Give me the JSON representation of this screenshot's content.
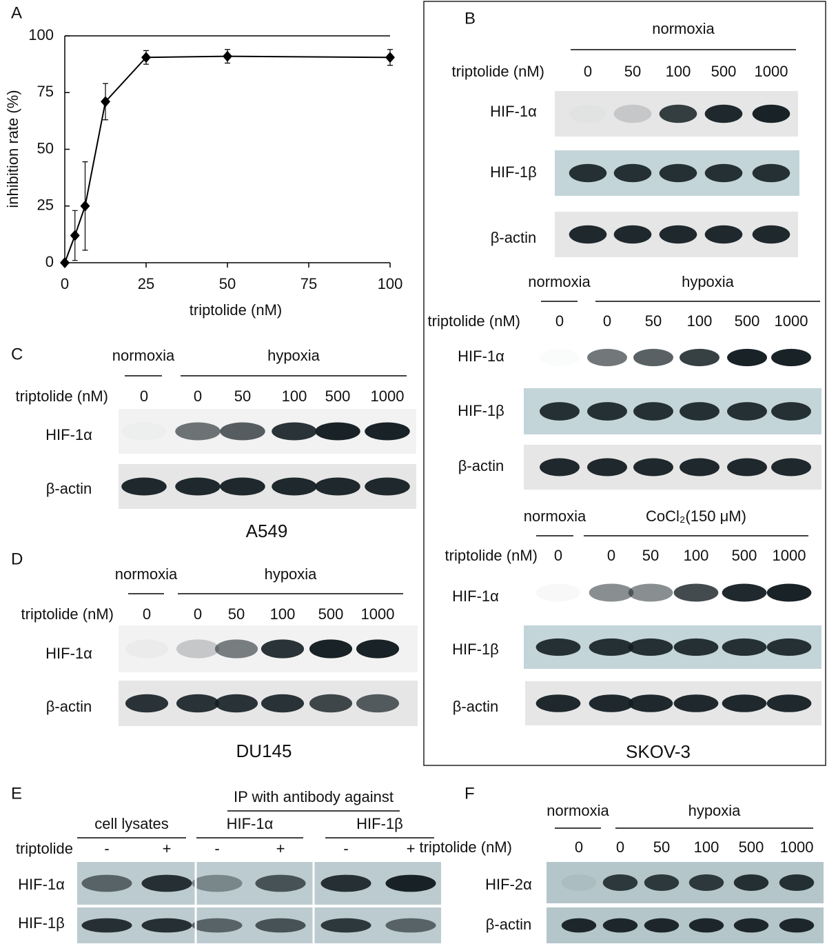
{
  "panel_labels": [
    "A",
    "B",
    "C",
    "D",
    "E",
    "F"
  ],
  "chart_data": {
    "type": "line",
    "x": [
      0,
      3.125,
      6.25,
      12.5,
      25,
      50,
      100
    ],
    "series": [
      {
        "values": [
          0,
          12,
          25,
          71,
          90.5,
          91,
          90.5
        ],
        "errors": [
          null,
          11,
          19.5,
          8,
          3,
          3,
          3.5
        ],
        "color": "#000000"
      }
    ],
    "xlabel": "triptolide (nM)",
    "ylabel": "inhibition rate (%)",
    "xlim": [
      0,
      100
    ],
    "xticks": [
      0,
      25,
      50,
      75,
      100
    ],
    "ylim": [
      0,
      100
    ],
    "yticks": [
      0,
      25,
      50,
      75,
      100
    ]
  },
  "blots": {
    "B1": {
      "groups": [
        "normoxia"
      ],
      "dose_label": "triptolide (nM)",
      "lanes": [
        "0",
        "50",
        "100",
        "500",
        "1000"
      ],
      "rows": [
        "HIF-1α",
        "HIF-1β",
        "β-actin"
      ]
    },
    "B2": {
      "groups": [
        "normoxia",
        "hypoxia"
      ],
      "dose_label": "triptolide (nM)",
      "lanes": [
        "0",
        "0",
        "50",
        "100",
        "500",
        "1000"
      ],
      "rows": [
        "HIF-1α",
        "HIF-1β",
        "β-actin"
      ]
    },
    "B3": {
      "groups": [
        "normoxia",
        "CoCl₂(150 μM)"
      ],
      "dose_label": "triptolide (nM)",
      "lanes": [
        "0",
        "0",
        "50",
        "100",
        "500",
        "1000"
      ],
      "rows": [
        "HIF-1α",
        "HIF-1β",
        "β-actin"
      ],
      "caption": "SKOV-3"
    },
    "C": {
      "groups": [
        "normoxia",
        "hypoxia"
      ],
      "dose_label": "triptolide (nM)",
      "lanes": [
        "0",
        "0",
        "50",
        "100",
        "500",
        "1000"
      ],
      "rows": [
        "HIF-1α",
        "β-actin"
      ],
      "caption": "A549"
    },
    "D": {
      "groups": [
        "normoxia",
        "hypoxia"
      ],
      "dose_label": "triptolide (nM)",
      "lanes": [
        "0",
        "0",
        "50",
        "100",
        "500",
        "1000"
      ],
      "rows": [
        "HIF-1α",
        "β-actin"
      ],
      "caption": "DU145"
    },
    "E": {
      "title": "IP with antibody against",
      "groups": [
        "cell lysates",
        "HIF-1α",
        "HIF-1β"
      ],
      "dose_label": "triptolide",
      "lanes": [
        "-",
        "+",
        "-",
        "+",
        "-",
        "+"
      ],
      "rows": [
        "HIF-1α",
        "HIF-1β"
      ]
    },
    "F": {
      "groups": [
        "normoxia",
        "hypoxia"
      ],
      "dose_label": "triptolide (nM)",
      "lanes": [
        "0",
        "0",
        "50",
        "100",
        "500",
        "1000"
      ],
      "rows": [
        "HIF-2α",
        "β-actin"
      ]
    }
  }
}
